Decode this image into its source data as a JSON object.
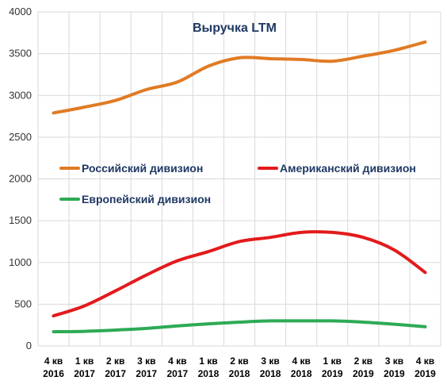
{
  "chart_data": {
    "type": "line",
    "title": "Выручка LTM",
    "ylim": [
      0,
      4000
    ],
    "yticks": [
      0,
      500,
      1000,
      1500,
      2000,
      2500,
      3000,
      3500,
      4000
    ],
    "categories": [
      {
        "q": "4 кв",
        "y": "2016"
      },
      {
        "q": "1 кв",
        "y": "2017"
      },
      {
        "q": "2 кв",
        "y": "2017"
      },
      {
        "q": "3 кв",
        "y": "2017"
      },
      {
        "q": "4 кв",
        "y": "2017"
      },
      {
        "q": "1 кв",
        "y": "2018"
      },
      {
        "q": "2 кв",
        "y": "2018"
      },
      {
        "q": "3 кв",
        "y": "2018"
      },
      {
        "q": "4 кв",
        "y": "2018"
      },
      {
        "q": "1 кв",
        "y": "2019"
      },
      {
        "q": "2 кв",
        "y": "2019"
      },
      {
        "q": "3 кв",
        "y": "2019"
      },
      {
        "q": "4 кв",
        "y": "2019"
      }
    ],
    "series": [
      {
        "name": "Российский дивизион",
        "color": "#e07b24",
        "values": [
          2790,
          2860,
          2940,
          3070,
          3160,
          3350,
          3450,
          3440,
          3430,
          3410,
          3470,
          3540,
          3640
        ]
      },
      {
        "name": "Американский дивизион",
        "color": "#e31a1c",
        "values": [
          360,
          480,
          660,
          850,
          1020,
          1130,
          1250,
          1300,
          1360,
          1360,
          1300,
          1150,
          880
        ]
      },
      {
        "name": "Европейский дивизион",
        "color": "#2eaa55",
        "values": [
          170,
          175,
          190,
          210,
          240,
          265,
          285,
          300,
          300,
          300,
          285,
          260,
          230
        ]
      }
    ],
    "grid": true,
    "legend": "inside, center-left"
  }
}
